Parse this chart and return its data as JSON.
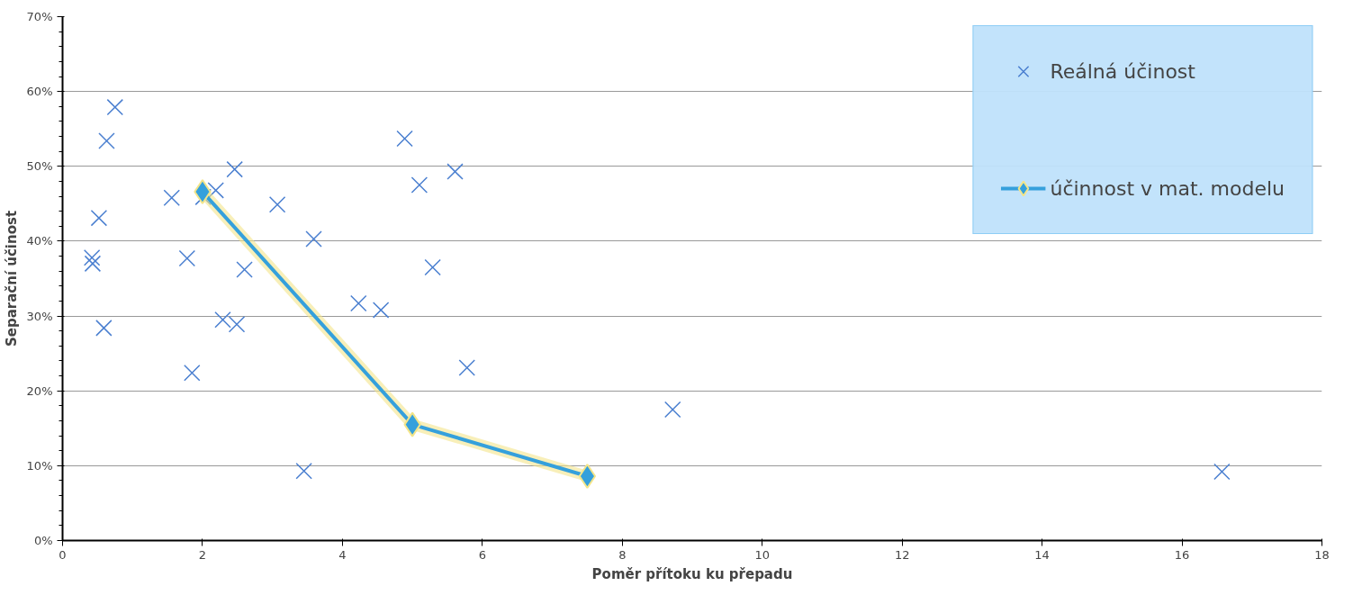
{
  "chart_data": {
    "type": "scatter",
    "xlabel": "Poměr přítoku ku přepadu",
    "ylabel": "Separační účinost",
    "xlim": [
      0,
      18
    ],
    "xticks": [
      0,
      2,
      4,
      6,
      8,
      10,
      12,
      14,
      16,
      18
    ],
    "ylim": [
      0,
      70
    ],
    "yticks": [
      {
        "value": 0,
        "label": "0%"
      },
      {
        "value": 10,
        "label": "10%"
      },
      {
        "value": 20,
        "label": "20%"
      },
      {
        "value": 30,
        "label": "30%"
      },
      {
        "value": 40,
        "label": "40%"
      },
      {
        "value": 50,
        "label": "50%"
      },
      {
        "value": 60,
        "label": "60%"
      },
      {
        "value": 70,
        "label": "70%"
      }
    ],
    "grid": "y",
    "legend": "top right",
    "series": [
      {
        "name": "Reálná účinost",
        "marker": "cross",
        "color": "#4a7fd0",
        "x": [
          0.42,
          0.43,
          0.52,
          0.59,
          0.63,
          0.75,
          1.56,
          1.78,
          1.85,
          2.01,
          2.19,
          2.29,
          2.49,
          2.46,
          2.6,
          3.07,
          3.45,
          3.59,
          4.23,
          4.55,
          4.89,
          5.1,
          5.29,
          5.61,
          5.78,
          8.72,
          16.57
        ],
        "values": [
          37.8,
          37.0,
          43.1,
          28.4,
          53.4,
          57.9,
          45.8,
          37.7,
          22.4,
          45.9,
          46.8,
          29.5,
          28.9,
          49.6,
          36.2,
          44.9,
          9.3,
          40.3,
          31.7,
          30.8,
          53.7,
          47.5,
          36.5,
          49.3,
          23.1,
          17.5,
          9.2
        ]
      },
      {
        "name": "účinnost v mat. modelu",
        "type": "line",
        "marker": "diamond",
        "color": "#35a0dc",
        "x": [
          2,
          5,
          7.5
        ],
        "values": [
          46.6,
          15.5,
          8.6
        ]
      }
    ]
  }
}
